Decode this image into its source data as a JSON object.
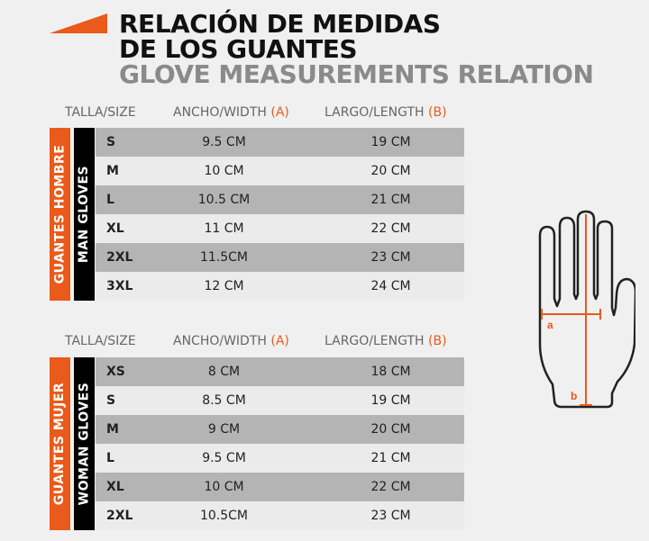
{
  "title": {
    "line1": "RELACIÓN DE MEDIDAS",
    "line2": "DE LOS GUANTES",
    "line3": "GLOVE MEASUREMENTS RELATION"
  },
  "columns": {
    "size": "TALLA/SIZE",
    "width": "ANCHO/WIDTH",
    "width_key": "(A)",
    "length": "LARGO/LENGTH",
    "length_key": "(B)"
  },
  "men": {
    "label_es": "GUANTES HOMBRE",
    "label_en": "MAN GLOVES",
    "rows": [
      {
        "size": "S",
        "width": "9.5 CM",
        "length": "19 CM"
      },
      {
        "size": "M",
        "width": "10 CM",
        "length": "20 CM"
      },
      {
        "size": "L",
        "width": "10.5 CM",
        "length": "21 CM"
      },
      {
        "size": "XL",
        "width": "11 CM",
        "length": "22 CM"
      },
      {
        "size": "2XL",
        "width": "11.5CM",
        "length": "23 CM"
      },
      {
        "size": "3XL",
        "width": "12 CM",
        "length": "24 CM"
      }
    ]
  },
  "women": {
    "label_es": "GUANTES MUJER",
    "label_en": "WOMAN GLOVES",
    "rows": [
      {
        "size": "XS",
        "width": "8 CM",
        "length": "18 CM"
      },
      {
        "size": "S",
        "width": "8.5 CM",
        "length": "19 CM"
      },
      {
        "size": "M",
        "width": "9 CM",
        "length": "20 CM"
      },
      {
        "size": "L",
        "width": "9.5 CM",
        "length": "21 CM"
      },
      {
        "size": "XL",
        "width": "10 CM",
        "length": "22 CM"
      },
      {
        "size": "2XL",
        "width": "10.5CM",
        "length": "23 CM"
      }
    ]
  },
  "diagram": {
    "label_a": "a",
    "label_b": "b"
  },
  "colors": {
    "accent": "#ea5a1a",
    "row_dark": "#b4b4b4",
    "row_light": "#ebebeb"
  }
}
